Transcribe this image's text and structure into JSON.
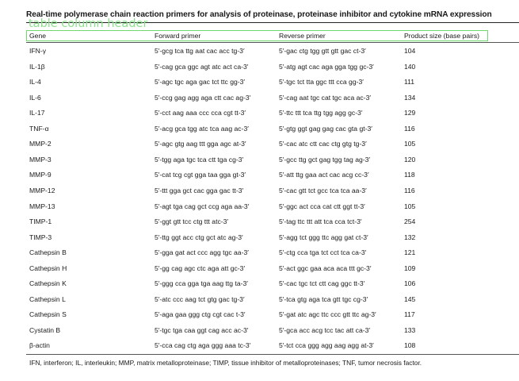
{
  "title": "Real-time polymerase chain reaction primers for analysis of proteinase, proteinase inhibitor and cytokine mRNA expression",
  "overlay_label": "table column header",
  "columns": [
    "Gene",
    "Forward primer",
    "Reverse primer",
    "Product size (base pairs)"
  ],
  "rows": [
    {
      "gene": "IFN-γ",
      "forward": "5′-gcg tca ttg aat cac acc tg-3′",
      "reverse": "5′-gac ctg tgg gtt gtt gac ct-3′",
      "size": "104"
    },
    {
      "gene": "IL-1β",
      "forward": "5′-cag gca ggc agt atc act ca-3′",
      "reverse": "5′-atg agt cac aga gga tgg gc-3′",
      "size": "140"
    },
    {
      "gene": "IL-4",
      "forward": "5′-agc tgc aga gac tct ttc gg-3′",
      "reverse": "5′-tgc tct tta ggc ttt cca gg-3′",
      "size": "111"
    },
    {
      "gene": "IL-6",
      "forward": "5′-ccg gag agg aga ctt cac ag-3′",
      "reverse": "5′-cag aat tgc cat tgc aca ac-3′",
      "size": "134"
    },
    {
      "gene": "IL-17",
      "forward": "5′-cct aag aaa ccc cca cgt tt-3′",
      "reverse": "5′-ttc ttt tca ttg tgg agg gc-3′",
      "size": "129"
    },
    {
      "gene": "TNF-α",
      "forward": "5′-acg gca tgg atc tca aag ac-3′",
      "reverse": "5′-gtg ggt gag gag cac gta gt-3′",
      "size": "116"
    },
    {
      "gene": "MMP-2",
      "forward": "5′-agc gtg aag ttt gga agc at-3′",
      "reverse": "5′-cac atc ctt cac ctg gtg tg-3′",
      "size": "105"
    },
    {
      "gene": "MMP-3",
      "forward": "5′-tgg aga tgc tca ctt tga cg-3′",
      "reverse": "5′-gcc ttg gct gag tgg tag ag-3′",
      "size": "120"
    },
    {
      "gene": "MMP-9",
      "forward": "5′-cat tcg cgt gga taa gga gt-3′",
      "reverse": "5′-att ttg gaa act cac acg cc-3′",
      "size": "118"
    },
    {
      "gene": "MMP-12",
      "forward": "5′-ttt gga gct cac gga gac tt-3′",
      "reverse": "5′-cac gtt tct gcc tca tca aa-3′",
      "size": "116"
    },
    {
      "gene": "MMP-13",
      "forward": "5′-agt tga cag gct ccg aga aa-3′",
      "reverse": "5′-ggc act cca cat ctt ggt tt-3′",
      "size": "105"
    },
    {
      "gene": "TIMP-1",
      "forward": "5′-ggt gtt tcc ctg ttt atc-3′",
      "reverse": "5′-tag ttc ttt att tca cca tct-3′",
      "size": "254"
    },
    {
      "gene": "TIMP-3",
      "forward": "5′-ttg ggt acc ctg gct atc ag-3′",
      "reverse": "5′-agg tct ggg ttc agg gat ct-3′",
      "size": "132"
    },
    {
      "gene": "Cathepsin B",
      "forward": "5′-gga gat act ccc agg tgc aa-3′",
      "reverse": "5′-ctg cca tga tct cct tca ca-3′",
      "size": "121"
    },
    {
      "gene": "Cathepsin H",
      "forward": "5′-gg cag agc ctc aga att gc-3′",
      "reverse": "5′-act ggc gaa aca aca ttt gc-3′",
      "size": "109"
    },
    {
      "gene": "Cathepsin K",
      "forward": "5′-ggg cca gga tga aag ttg ta-3′",
      "reverse": "5′-cac tgc tct ctt cag ggc tt-3′",
      "size": "106"
    },
    {
      "gene": "Cathepsin L",
      "forward": "5′-atc ccc aag tct gtg gac tg-3′",
      "reverse": "5′-tca gtg aga tca gtt tgc cg-3′",
      "size": "145"
    },
    {
      "gene": "Cathepsin S",
      "forward": "5′-aga gaa ggg ctg cgt cac t-3′",
      "reverse": "5′-gat atc agc ttc ccc gtt ttc ag-3′",
      "size": "117"
    },
    {
      "gene": "Cystatin B",
      "forward": "5′-tgc tga caa ggt cag acc ac-3′",
      "reverse": "5′-gca acc acg tcc tac att ca-3′",
      "size": "133"
    },
    {
      "gene": "β-actin",
      "forward": "5′-cca cag ctg aga ggg aaa tc-3′",
      "reverse": "5′-tct cca ggg agg aag agg at-3′",
      "size": "108"
    }
  ],
  "footnote": "IFN, interferon; IL, interleukin; MMP, matrix metalloproteinase; TIMP, tissue inhibitor of metalloproteinases; TNF, tumor necrosis factor."
}
